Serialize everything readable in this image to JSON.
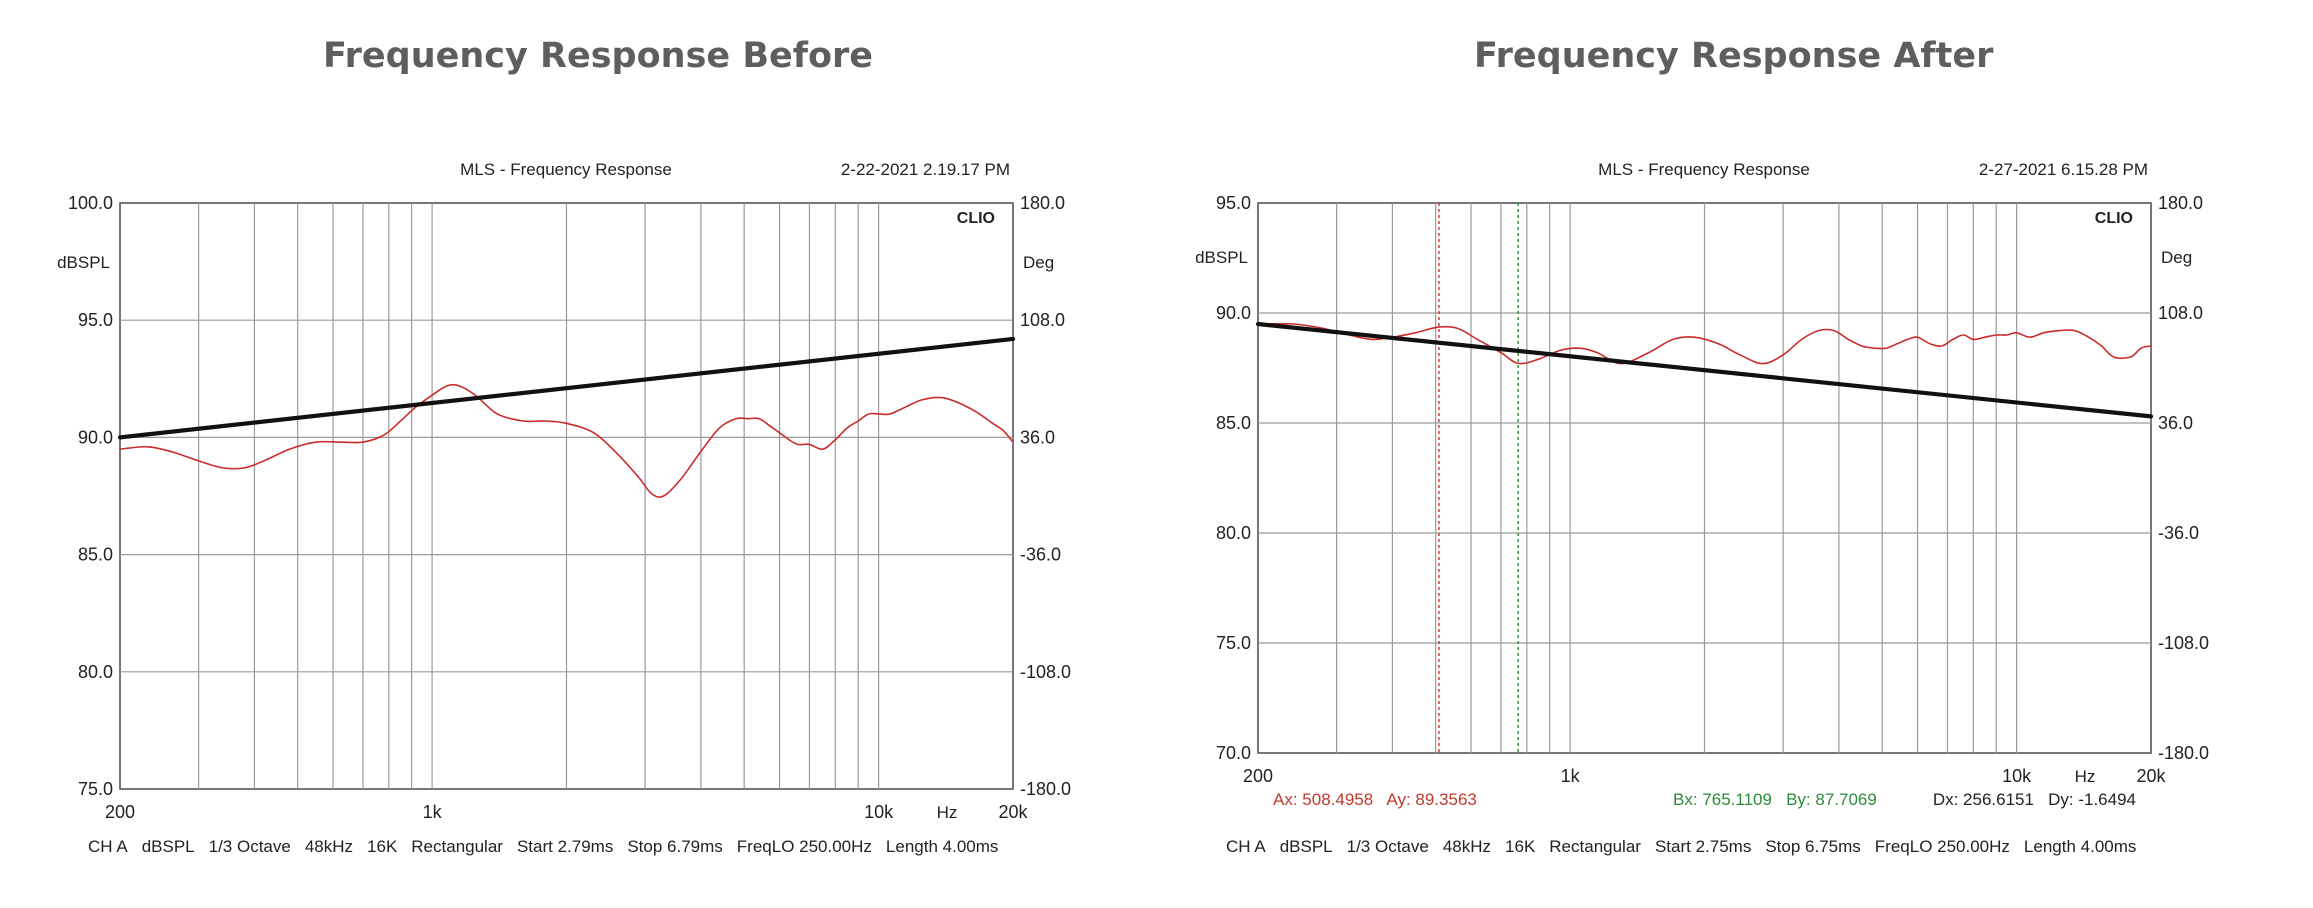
{
  "charts": [
    {
      "heading": "Frequency Response Before",
      "title": "MLS - Frequency Response",
      "timestamp": "2-22-2021 2.19.17 PM",
      "brand": "CLIO",
      "left_unit": "dBSPL",
      "right_unit": "Deg",
      "x_unit": "Hz",
      "footer": [
        "CH A",
        "dBSPL",
        "1/3 Octave",
        "48kHz",
        "16K",
        "Rectangular",
        "Start 2.79ms",
        "Stop 6.79ms",
        "FreqLO 250.00Hz",
        "Length 4.00ms"
      ],
      "cursor_readouts": []
    },
    {
      "heading": "Frequency Response After",
      "title": "MLS - Frequency Response",
      "timestamp": "2-27-2021 6.15.28 PM",
      "brand": "CLIO",
      "left_unit": "dBSPL",
      "right_unit": "Deg",
      "x_unit": "Hz",
      "footer": [
        "CH A",
        "dBSPL",
        "1/3 Octave",
        "48kHz",
        "16K",
        "Rectangular",
        "Start 2.75ms",
        "Stop 6.75ms",
        "FreqLO 250.00Hz",
        "Length 4.00ms"
      ],
      "cursor_readouts": [
        {
          "text": "Ax: 508.4958   Ay: 89.3563",
          "color": "#c0392b"
        },
        {
          "text": "Bx: 765.1109   By: 87.7069",
          "color": "#2e8b3a"
        },
        {
          "text": "Dx: 256.6151   Dy: -1.6494",
          "color": "#222222"
        }
      ]
    }
  ],
  "chart_data": [
    {
      "type": "line",
      "scale_x": "log",
      "xlim": [
        200,
        20000
      ],
      "ylim": [
        75,
        100
      ],
      "y2lim": [
        -180,
        180
      ],
      "grid": true,
      "x_tick_labels": [
        {
          "x": 200,
          "label": "200"
        },
        {
          "x": 1000,
          "label": "1k"
        },
        {
          "x": 10000,
          "label": "10k"
        },
        {
          "x": 20000,
          "label": "20k"
        }
      ],
      "y_ticks": [
        75.0,
        80.0,
        85.0,
        90.0,
        95.0,
        100.0
      ],
      "y_tick_labels": [
        "75.0",
        "80.0",
        "85.0",
        "90.0",
        "95.0",
        "100.0"
      ],
      "y2_ticks": [
        -180,
        -108,
        -36,
        36,
        108,
        180
      ],
      "y2_tick_labels": [
        "-180.0",
        "-108.0",
        "-36.0",
        "36.0",
        "108.0",
        "180.0"
      ],
      "series": [
        {
          "color": "#cc2b2b",
          "width": 1.6,
          "axis": "left",
          "x": [
            200,
            230,
            260,
            300,
            340,
            380,
            420,
            480,
            550,
            620,
            700,
            780,
            850,
            920,
            1000,
            1080,
            1150,
            1250,
            1400,
            1600,
            1800,
            2000,
            2300,
            2600,
            2900,
            3100,
            3300,
            3600,
            4000,
            4400,
            4800,
            5100,
            5400,
            5700,
            6000,
            6300,
            6600,
            7000,
            7500,
            8000,
            8500,
            9000,
            9500,
            10000,
            10600,
            11500,
            12500,
            13800,
            15000,
            16500,
            18000,
            19000,
            20000
          ],
          "y": [
            89.5,
            89.6,
            89.4,
            89.0,
            88.7,
            88.7,
            89.0,
            89.5,
            89.8,
            89.8,
            89.8,
            90.1,
            90.7,
            91.3,
            91.8,
            92.2,
            92.2,
            91.8,
            91.0,
            90.7,
            90.7,
            90.6,
            90.2,
            89.3,
            88.3,
            87.6,
            87.5,
            88.2,
            89.4,
            90.4,
            90.8,
            90.8,
            90.8,
            90.5,
            90.2,
            89.9,
            89.7,
            89.7,
            89.5,
            89.9,
            90.4,
            90.7,
            91.0,
            91.0,
            91.0,
            91.3,
            91.6,
            91.7,
            91.5,
            91.1,
            90.6,
            90.3,
            89.8
          ]
        },
        {
          "color": "#111111",
          "width": 4.2,
          "axis": "left",
          "x": [
            200,
            20000
          ],
          "y": [
            90.0,
            94.2
          ]
        }
      ]
    },
    {
      "type": "line",
      "scale_x": "log",
      "xlim": [
        200,
        20000
      ],
      "ylim": [
        70,
        95
      ],
      "y2lim": [
        -180,
        180
      ],
      "grid": true,
      "x_tick_labels": [
        {
          "x": 200,
          "label": "200"
        },
        {
          "x": 1000,
          "label": "1k"
        },
        {
          "x": 10000,
          "label": "10k"
        },
        {
          "x": 20000,
          "label": "20k"
        }
      ],
      "y_ticks": [
        70.0,
        75.0,
        80.0,
        85.0,
        90.0,
        95.0
      ],
      "y_tick_labels": [
        "70.0",
        "75.0",
        "80.0",
        "85.0",
        "90.0",
        "95.0"
      ],
      "y2_ticks": [
        -180,
        -108,
        -36,
        36,
        108,
        180
      ],
      "y2_tick_labels": [
        "-180.0",
        "-108.0",
        "-36.0",
        "36.0",
        "108.0",
        "180.0"
      ],
      "cursors": [
        {
          "x": 508.4958,
          "color": "#cc2b2b",
          "dash": "3,3"
        },
        {
          "x": 765.1109,
          "color": "#2e8b3a",
          "dash": "3,3"
        }
      ],
      "series": [
        {
          "color": "#cc2b2b",
          "width": 1.6,
          "axis": "left",
          "x": [
            200,
            240,
            280,
            320,
            360,
            400,
            450,
            508,
            560,
            620,
            700,
            765,
            850,
            950,
            1050,
            1150,
            1300,
            1500,
            1700,
            1900,
            2150,
            2400,
            2700,
            3000,
            3300,
            3600,
            3900,
            4200,
            4500,
            4800,
            5100,
            5400,
            5700,
            6000,
            6400,
            6800,
            7200,
            7600,
            8000,
            8500,
            9000,
            9500,
            10000,
            10700,
            11500,
            12500,
            13500,
            14500,
            15500,
            16500,
            18000,
            19000,
            20000
          ],
          "y": [
            89.5,
            89.5,
            89.3,
            89.0,
            88.8,
            88.9,
            89.1,
            89.36,
            89.3,
            88.8,
            88.2,
            87.71,
            87.9,
            88.3,
            88.4,
            88.2,
            87.7,
            88.2,
            88.8,
            88.9,
            88.6,
            88.1,
            87.7,
            88.1,
            88.8,
            89.2,
            89.2,
            88.8,
            88.5,
            88.4,
            88.4,
            88.6,
            88.8,
            88.9,
            88.6,
            88.5,
            88.8,
            89.0,
            88.8,
            88.9,
            89.0,
            89.0,
            89.1,
            88.9,
            89.1,
            89.2,
            89.2,
            88.9,
            88.5,
            88.0,
            88.0,
            88.4,
            88.5
          ]
        },
        {
          "color": "#111111",
          "width": 4.2,
          "axis": "left",
          "x": [
            200,
            20000
          ],
          "y": [
            89.5,
            85.3
          ]
        }
      ]
    }
  ]
}
